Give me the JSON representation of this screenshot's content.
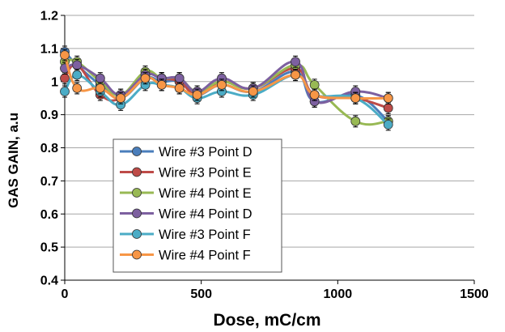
{
  "chart_data": {
    "type": "line",
    "title": "",
    "xlabel": "Dose, mC/cm",
    "ylabel": "GAS GAIN, a.u",
    "xlim": [
      0,
      1500
    ],
    "ylim": [
      0.4,
      1.2
    ],
    "xticks": [
      "0",
      "500",
      "1000",
      "1500"
    ],
    "yticks": [
      "0.4",
      "0.5",
      "0.6",
      "0.7",
      "0.8",
      "0.9",
      "1",
      "1.1",
      "1.2"
    ],
    "grid": "horizontal",
    "legend_position": "bottom-left",
    "series": [
      {
        "name": "Wire #3 Point D",
        "color": "#4a7ebb",
        "x": [
          0,
          45,
          130,
          205,
          295,
          355,
          420,
          485,
          575,
          690,
          845,
          915,
          1065,
          1185
        ],
        "y": [
          1.09,
          1.05,
          0.99,
          0.95,
          1.01,
          1.0,
          1.0,
          0.96,
          0.99,
          0.97,
          1.03,
          0.94,
          0.96,
          0.88
        ]
      },
      {
        "name": "Wire #3 Point E",
        "color": "#be4b48",
        "x": [
          0,
          45,
          130,
          205,
          295,
          355,
          420,
          485,
          575,
          690,
          845,
          915,
          1065,
          1185
        ],
        "y": [
          1.01,
          1.05,
          0.96,
          0.95,
          1.02,
          1.01,
          1.0,
          0.96,
          1.0,
          0.98,
          1.04,
          0.96,
          0.95,
          0.92
        ]
      },
      {
        "name": "Wire #4 Point E",
        "color": "#98b954",
        "x": [
          0,
          45,
          130,
          205,
          295,
          355,
          420,
          485,
          575,
          690,
          845,
          915,
          1065,
          1185
        ],
        "y": [
          1.06,
          1.06,
          1.0,
          0.96,
          1.03,
          1.01,
          1.01,
          0.97,
          1.0,
          0.98,
          1.05,
          0.99,
          0.88,
          0.88
        ]
      },
      {
        "name": "Wire #4 Point D",
        "color": "#7d60a0",
        "x": [
          0,
          45,
          130,
          205,
          295,
          355,
          420,
          485,
          575,
          690,
          845,
          915,
          1065,
          1185
        ],
        "y": [
          1.04,
          1.05,
          1.01,
          0.96,
          1.02,
          1.01,
          1.01,
          0.97,
          1.01,
          0.98,
          1.06,
          0.94,
          0.97,
          0.95
        ]
      },
      {
        "name": "Wire #3 Point F",
        "color": "#4bacc6",
        "x": [
          0,
          45,
          130,
          205,
          295,
          355,
          420,
          485,
          575,
          690,
          845,
          915,
          1065,
          1185
        ],
        "y": [
          0.97,
          1.02,
          0.97,
          0.93,
          0.99,
          0.99,
          0.98,
          0.95,
          0.97,
          0.96,
          1.02,
          0.96,
          0.95,
          0.87
        ]
      },
      {
        "name": "Wire #4 Point F",
        "color": "#f79646",
        "x": [
          0,
          45,
          130,
          205,
          295,
          355,
          420,
          485,
          575,
          690,
          845,
          915,
          1065,
          1185
        ],
        "y": [
          1.08,
          0.98,
          0.98,
          0.95,
          1.01,
          0.99,
          0.98,
          0.96,
          0.99,
          0.97,
          1.02,
          0.96,
          0.95,
          0.95
        ]
      }
    ]
  }
}
